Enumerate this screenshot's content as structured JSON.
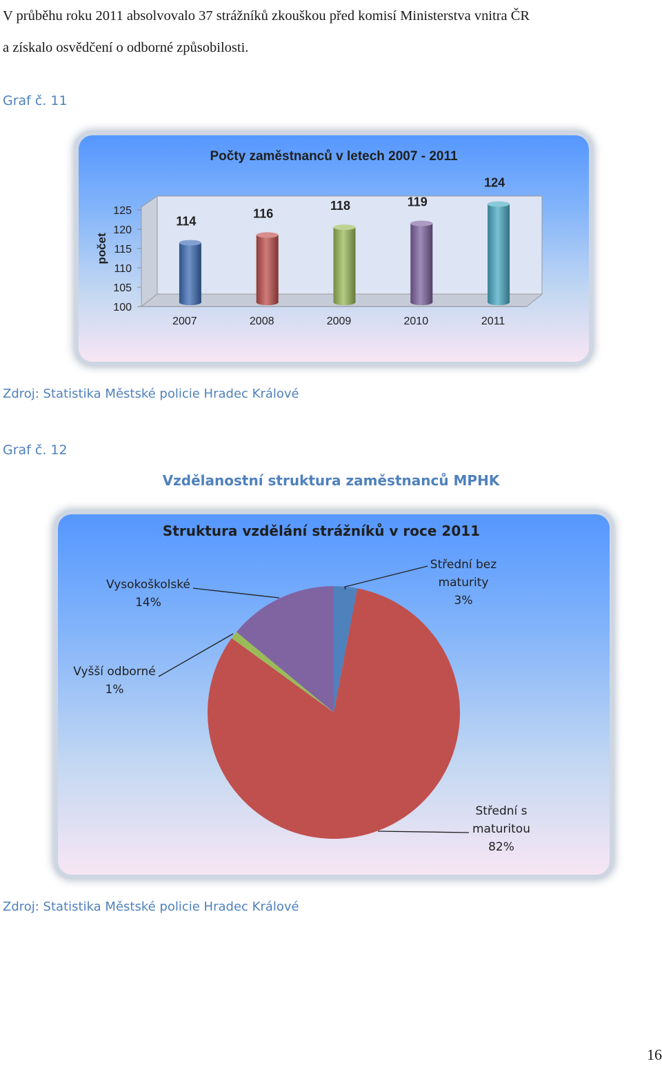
{
  "intro": {
    "line1": "V průběhu roku 2011 absolvovalo 37 strážníků zkouškou před komisí Ministerstva vnitra ČR",
    "line2": "a získalo osvědčení o odborné způsobilosti."
  },
  "graph11": {
    "caption": "Graf č. 11",
    "source": "Zdroj: Statistika Městské policie Hradec Králové"
  },
  "graph12": {
    "caption": "Graf č. 12",
    "subtitle": "Vzdělanostní struktura zaměstnanců MPHK",
    "source": "Zdroj: Statistika Městské policie Hradec Králové"
  },
  "page_number": "16",
  "chart_data": [
    {
      "type": "bar",
      "title": "Počty zaměstnanců v letech 2007 - 2011",
      "xlabel": "",
      "ylabel": "počet",
      "categories": [
        "2007",
        "2008",
        "2009",
        "2010",
        "2011"
      ],
      "values": [
        114,
        116,
        118,
        119,
        124
      ],
      "data_labels": [
        "114",
        "116",
        "118",
        "119",
        "124"
      ],
      "yticks": [
        "100",
        "105",
        "110",
        "115",
        "120",
        "125"
      ],
      "ylim": [
        100,
        125
      ],
      "colors": [
        "#3f6fb7",
        "#c0504d",
        "#9bbb59",
        "#8064a2",
        "#4bacc6"
      ],
      "legend": "none",
      "grid": false
    },
    {
      "type": "pie",
      "title": "Struktura vzdělání strážníků v roce 2011",
      "slices": [
        {
          "label_lines": [
            "Střední bez",
            "maturity",
            "3%"
          ],
          "value": 3,
          "color": "#4f81bd"
        },
        {
          "label_lines": [
            "Střední s",
            "maturitou",
            "82%"
          ],
          "value": 82,
          "color": "#c0504d"
        },
        {
          "label_lines": [
            "Vyšší odborné",
            "1%"
          ],
          "value": 1,
          "color": "#9bbb59"
        },
        {
          "label_lines": [
            "Vysokoškolské",
            "14%"
          ],
          "value": 14,
          "color": "#8064a2"
        }
      ],
      "legend": "none"
    }
  ]
}
